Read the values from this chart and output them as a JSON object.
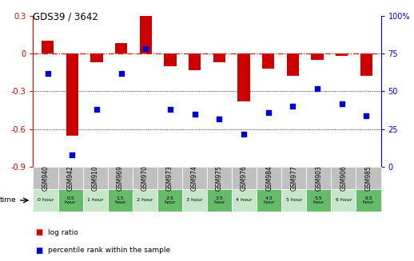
{
  "title": "GDS39 / 3642",
  "samples": [
    "GSM940",
    "GSM942",
    "GSM910",
    "GSM969",
    "GSM970",
    "GSM973",
    "GSM974",
    "GSM975",
    "GSM976",
    "GSM984",
    "GSM977",
    "GSM903",
    "GSM906",
    "GSM985"
  ],
  "time_labels": [
    "0 hour",
    "0.5\nhour",
    "1 hour",
    "1.5\nhour",
    "2 hour",
    "2.5\nhour",
    "3 hour",
    "3.5\nhour",
    "4 hour",
    "4.5\nhour",
    "5 hour",
    "5.5\nhour",
    "6 hour",
    "6.5\nhour"
  ],
  "log_ratio": [
    0.1,
    -0.65,
    -0.07,
    0.08,
    0.3,
    -0.1,
    -0.13,
    -0.07,
    -0.38,
    -0.12,
    -0.18,
    -0.05,
    -0.02,
    -0.18
  ],
  "percentile": [
    62,
    8,
    38,
    62,
    78,
    38,
    35,
    32,
    22,
    36,
    40,
    52,
    42,
    34
  ],
  "ylim_left": [
    -0.9,
    0.3
  ],
  "ylim_right": [
    0,
    100
  ],
  "yticks_left": [
    -0.9,
    -0.6,
    -0.3,
    0,
    0.3
  ],
  "yticks_right": [
    0,
    25,
    50,
    75,
    100
  ],
  "bar_color": "#cc0000",
  "dot_color": "#0000cc",
  "hline_color": "#cc0000",
  "grid_color": "#000000",
  "bg_color": "#ffffff",
  "header_bg": "#c0c0c0",
  "legend_log": "log ratio",
  "legend_pct": "percentile rank within the sample",
  "time_arrow_label": "time"
}
